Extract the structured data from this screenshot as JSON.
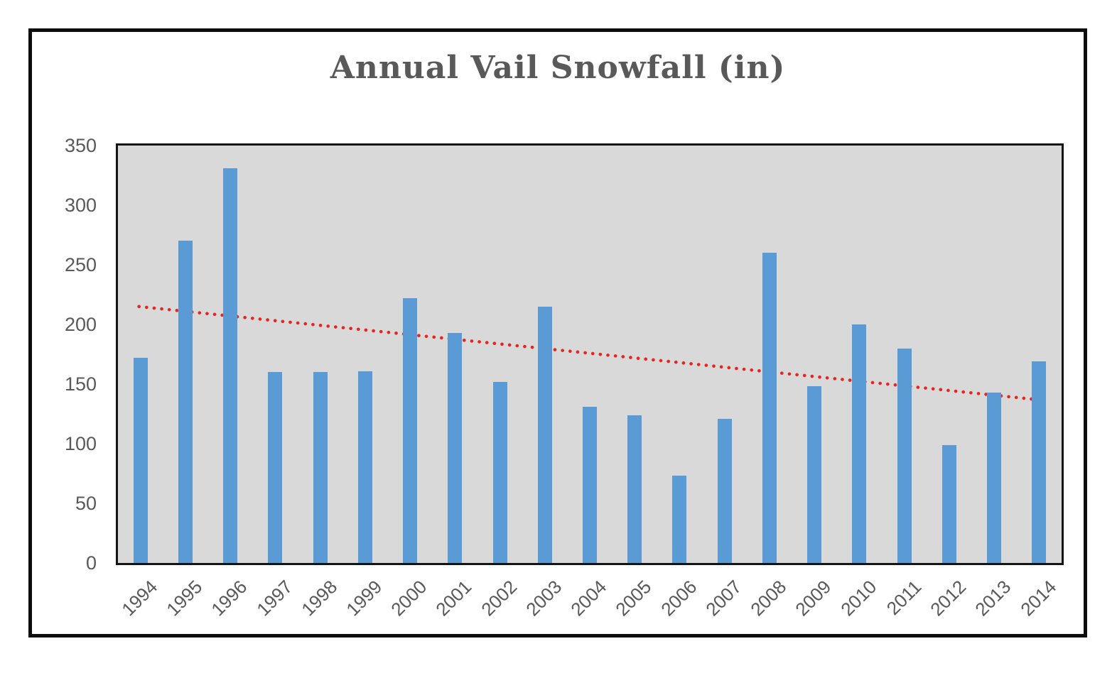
{
  "window": {
    "background_color": "#ffffff",
    "frame_border_color": "#0d0d0d"
  },
  "chart_data": {
    "type": "bar",
    "title": "Annual Vail Snowfall (in)",
    "title_color": "#595959",
    "xlabel": "",
    "ylabel": "",
    "categories": [
      "1994",
      "1995",
      "1996",
      "1997",
      "1998",
      "1999",
      "2000",
      "2001",
      "2002",
      "2003",
      "2004",
      "2005",
      "2006",
      "2007",
      "2008",
      "2009",
      "2010",
      "2011",
      "2012",
      "2013",
      "2014"
    ],
    "values": [
      172,
      270,
      331,
      160,
      160,
      161,
      222,
      193,
      152,
      215,
      131,
      124,
      73,
      121,
      260,
      148,
      200,
      180,
      99,
      143,
      169
    ],
    "ylim": [
      0,
      350
    ],
    "yticks": [
      0,
      50,
      100,
      150,
      200,
      250,
      300,
      350
    ],
    "grid": "off",
    "legend": "none",
    "plot_background": "#d9d9d9",
    "plot_border_color": "#141414",
    "bar_color": "#5b9bd5",
    "axis_label_color": "#595959",
    "trendline": {
      "type": "linear",
      "style": "dotted",
      "color": "#e52520",
      "start_value": 215,
      "end_value": 137
    }
  }
}
